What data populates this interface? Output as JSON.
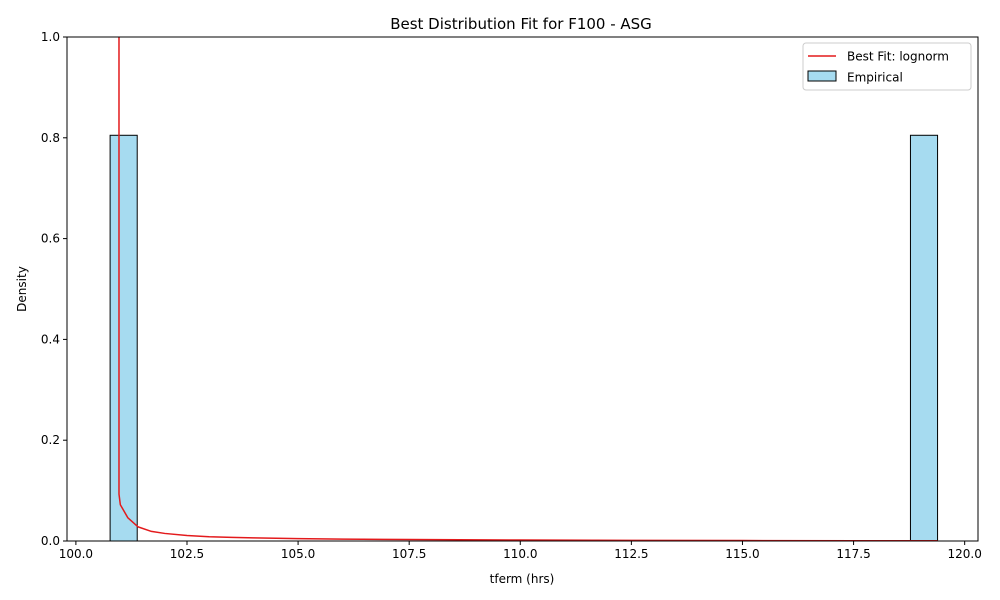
{
  "chart_data": {
    "type": "bar",
    "title": "Best Distribution Fit for F100 - ASG",
    "xlabel": "tferm (hrs)",
    "ylabel": "Density",
    "xlim": [
      99.8,
      120.3
    ],
    "ylim": [
      0,
      1.0
    ],
    "xticks": [
      100.0,
      102.5,
      105.0,
      107.5,
      110.0,
      112.5,
      115.0,
      117.5,
      120.0
    ],
    "xtick_labels": [
      "100.0",
      "102.5",
      "105.0",
      "107.5",
      "110.0",
      "112.5",
      "115.0",
      "117.5",
      "120.0"
    ],
    "yticks": [
      0.0,
      0.2,
      0.4,
      0.6,
      0.8,
      1.0
    ],
    "ytick_labels": [
      "0.0",
      "0.2",
      "0.4",
      "0.6",
      "0.8",
      "1.0"
    ],
    "grid": false,
    "legend_position": "top-right",
    "histogram": {
      "name": "Empirical",
      "color": "#a6dbf0",
      "edgecolor": "#000000",
      "bins": [
        {
          "x0": 100.77,
          "x1": 101.38,
          "density": 0.805
        },
        {
          "x0": 118.78,
          "x1": 119.39,
          "density": 0.805
        }
      ]
    },
    "fit_line": {
      "name": "Best Fit: lognorm",
      "color": "#e31a1c",
      "x": [
        100.97,
        100.97,
        101.0,
        101.17,
        101.4,
        101.7,
        102.0,
        102.5,
        103.0,
        103.5,
        104.0,
        105.0,
        106.0,
        107.5,
        110.0,
        112.5,
        115.0,
        117.5,
        119.39
      ],
      "y": [
        1.0,
        0.093,
        0.072,
        0.046,
        0.028,
        0.019,
        0.015,
        0.011,
        0.0085,
        0.0072,
        0.0062,
        0.0048,
        0.0038,
        0.0029,
        0.0019,
        0.0013,
        0.0009,
        0.0006,
        0.0004
      ]
    }
  }
}
